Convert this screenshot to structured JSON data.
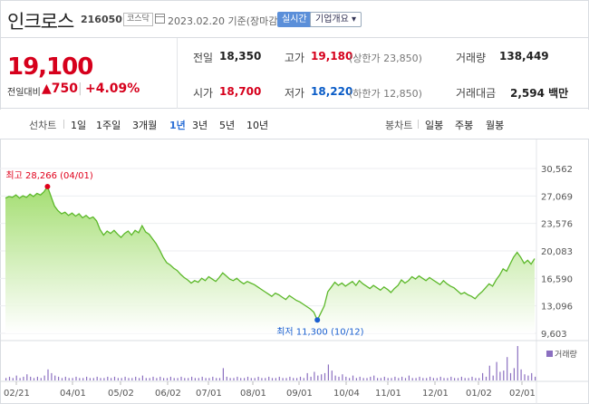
{
  "stock": {
    "name": "인크로스",
    "code": "216050",
    "market": "코스닥",
    "date_info": "2023.02.20 기준(장마감)",
    "realtime_label": "실시간",
    "company_label": "기업개요 ▾"
  },
  "price": {
    "current": "19,100",
    "change_label": "전일대비",
    "change_abs": "▲750",
    "change_sep": "|",
    "change_pct": "+4.09%"
  },
  "stats": {
    "prev_label": "전일",
    "prev_value": "18,350",
    "high_label": "고가",
    "high_value": "19,180",
    "high_sub": "(상한가 23,850)",
    "volume_label": "거래량",
    "volume_value": "138,449",
    "open_label": "시가",
    "open_value": "18,700",
    "low_label": "저가",
    "low_value": "18,220",
    "low_sub": "(하한가 12,850)",
    "amount_label": "거래대금",
    "amount_value": "2,594 백만"
  },
  "tabs": {
    "line_title": "선차트",
    "line_items": [
      "1일",
      "1주일",
      "3개월",
      "1년",
      "3년",
      "5년",
      "10년"
    ],
    "active": "1년",
    "candle_title": "봉차트",
    "candle_items": [
      "일봉",
      "주봉",
      "월봉"
    ]
  },
  "chart_data": {
    "type": "area",
    "y_ticks": [
      "30,562",
      "27,069",
      "23,576",
      "20,083",
      "16,590",
      "13,096",
      "9,603"
    ],
    "ylim": [
      9603,
      30562
    ],
    "x_ticks": [
      "02/21",
      "04/01",
      "05/02",
      "06/02",
      "07/01",
      "08/01",
      "09/01",
      "10/04",
      "11/01",
      "12/01",
      "01/02",
      "02/01"
    ],
    "high_annotation": "최고 28,266 (04/01)",
    "low_annotation": "최저 11,300 (10/12)",
    "high_value": 28266,
    "low_value": 11300,
    "volume_label": "거래량",
    "series": [
      {
        "values": [
          26800,
          27000,
          26900,
          27200,
          26800,
          27100,
          26900,
          27300,
          27000,
          27400,
          27200,
          27600,
          28266,
          27000,
          25800,
          25200,
          24800,
          25000,
          24600,
          24900,
          24500,
          24800,
          24300,
          24600,
          24200,
          24400,
          23900,
          22800,
          22100,
          22600,
          22300,
          22700,
          22200,
          21800,
          22300,
          22600,
          22100,
          22700,
          22400,
          23300,
          22500,
          22200,
          21600,
          21000,
          20200,
          19300,
          18600,
          18300,
          17900,
          17600,
          17100,
          16700,
          16400,
          16000,
          16300,
          16100,
          16600,
          16300,
          16800,
          16500,
          16200,
          16700,
          17300,
          16900,
          16500,
          16300,
          16600,
          16200,
          15900,
          16200,
          16000,
          15800,
          15500,
          15200,
          14900,
          14600,
          14300,
          14700,
          14500,
          14200,
          13900,
          14400,
          14100,
          13800,
          13600,
          13300,
          13000,
          12700,
          12300,
          11300,
          12200,
          13100,
          14900,
          15500,
          16100,
          15700,
          16000,
          15600,
          15900,
          16200,
          15700,
          16300,
          15900,
          15600,
          15300,
          15700,
          15400,
          15100,
          15500,
          15200,
          14800,
          15300,
          15700,
          16400,
          16000,
          16300,
          16800,
          16500,
          16900,
          16600,
          16300,
          16700,
          16400,
          16100,
          15800,
          16300,
          15900,
          15600,
          15400,
          15000,
          14600,
          14800,
          14500,
          14300,
          14000,
          14500,
          14900,
          15400,
          15900,
          15600,
          16400,
          17000,
          17800,
          17500,
          18400,
          19300,
          19900,
          19300,
          18500,
          18900,
          18400,
          19100
        ]
      }
    ],
    "volume": [
      2,
      3,
      2,
      4,
      2,
      3,
      5,
      3,
      2,
      3,
      2,
      4,
      9,
      6,
      4,
      3,
      2,
      3,
      2,
      2,
      3,
      2,
      2,
      3,
      2,
      2,
      3,
      2,
      2,
      3,
      2,
      3,
      2,
      2,
      3,
      2,
      2,
      3,
      2,
      4,
      2,
      2,
      3,
      2,
      3,
      2,
      2,
      3,
      2,
      2,
      3,
      2,
      2,
      3,
      2,
      2,
      3,
      2,
      2,
      3,
      2,
      2,
      10,
      3,
      2,
      2,
      3,
      2,
      2,
      3,
      2,
      2,
      3,
      2,
      2,
      3,
      2,
      2,
      3,
      2,
      2,
      3,
      2,
      2,
      3,
      2,
      6,
      3,
      7,
      4,
      5,
      6,
      13,
      8,
      4,
      3,
      5,
      3,
      2,
      4,
      2,
      3,
      2,
      2,
      3,
      4,
      2,
      2,
      3,
      2,
      2,
      3,
      2,
      3,
      2,
      4,
      2,
      2,
      3,
      2,
      2,
      3,
      2,
      2,
      3,
      2,
      2,
      3,
      2,
      2,
      3,
      2,
      2,
      3,
      2,
      2,
      6,
      3,
      12,
      4,
      15,
      7,
      8,
      19,
      6,
      10,
      28,
      9,
      5,
      4,
      6,
      3
    ]
  }
}
